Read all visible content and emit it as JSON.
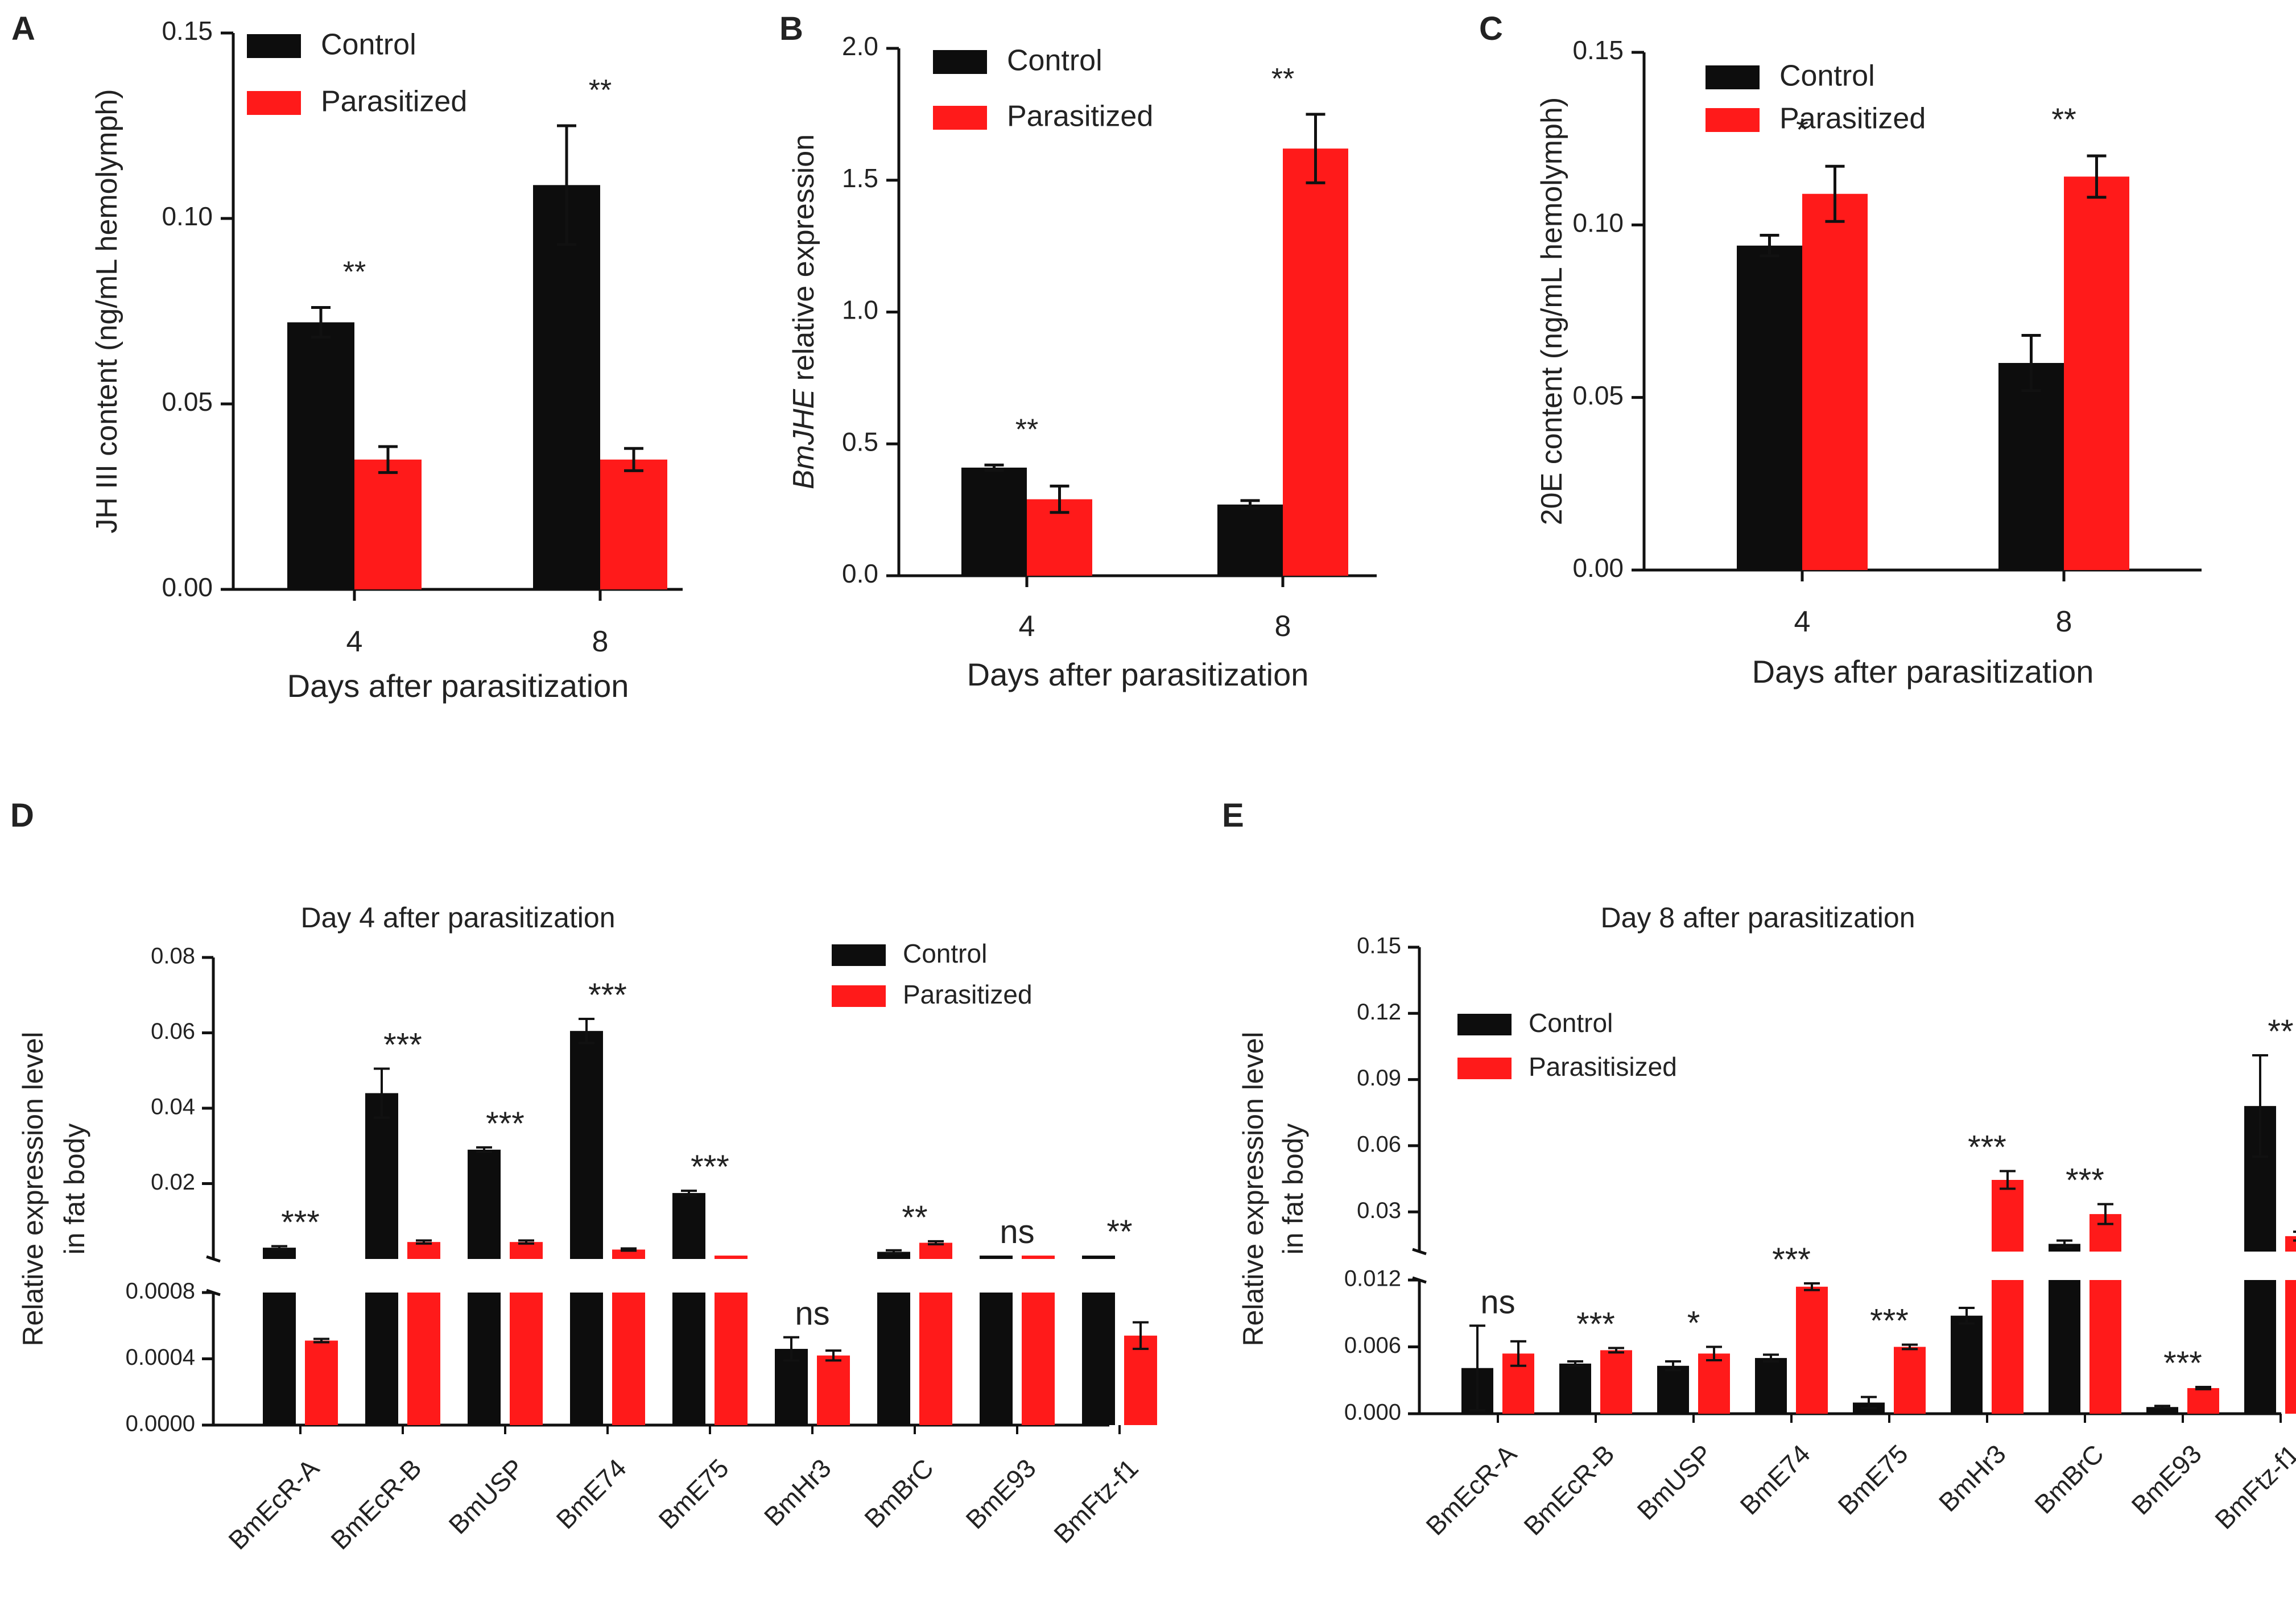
{
  "colors": {
    "control": "#0d0d0d",
    "parasitized": "#ff1a1a",
    "axis": "#111111",
    "text": "#222222"
  },
  "chart_data": [
    {
      "id": "A",
      "panel_label": "A",
      "type": "bar",
      "title": "",
      "categories": [
        "4",
        "8"
      ],
      "xlabel": "Days after parasitization",
      "ylabel": "JH III content (ng/mL hemolymph)",
      "ylim": [
        0,
        0.15
      ],
      "yticks": [
        "0.00",
        "0.05",
        "0.10",
        "0.15"
      ],
      "legend": [
        "Control",
        "Parasitized"
      ],
      "legend_position": "top-left",
      "series": [
        {
          "name": "Control",
          "color": "#0d0d0d",
          "values": [
            0.072,
            0.109
          ],
          "errors": [
            0.004,
            0.016
          ]
        },
        {
          "name": "Parasitized",
          "color": "#ff1a1a",
          "values": [
            0.035,
            0.035
          ],
          "errors": [
            0.0035,
            0.003
          ]
        }
      ],
      "significance": [
        "**",
        "**"
      ]
    },
    {
      "id": "B",
      "panel_label": "B",
      "type": "bar",
      "title": "",
      "categories": [
        "4",
        "8"
      ],
      "xlabel": "Days after parasitization",
      "ylabel_italic": "BmJHE",
      "ylabel_rest": " relative expression",
      "ylim": [
        0,
        2.0
      ],
      "yticks": [
        "0.0",
        "0.5",
        "1.0",
        "1.5",
        "2.0"
      ],
      "legend": [
        "Control",
        "Parasitized"
      ],
      "legend_position": "top-left",
      "series": [
        {
          "name": "Control",
          "color": "#0d0d0d",
          "values": [
            0.41,
            0.27
          ],
          "errors": [
            0.01,
            0.015
          ]
        },
        {
          "name": "Parasitized",
          "color": "#ff1a1a",
          "values": [
            0.29,
            1.62
          ],
          "errors": [
            0.05,
            0.13
          ]
        }
      ],
      "significance": [
        "**",
        "**"
      ]
    },
    {
      "id": "C",
      "panel_label": "C",
      "type": "bar",
      "title": "",
      "categories": [
        "4",
        "8"
      ],
      "xlabel": "Days after parasitization",
      "ylabel": "20E content (ng/mL hemolymph)",
      "ylim": [
        0,
        0.15
      ],
      "yticks": [
        "0.00",
        "0.05",
        "0.10",
        "0.15"
      ],
      "legend": [
        "Control",
        "Parasitized"
      ],
      "legend_position": "top-left",
      "series": [
        {
          "name": "Control",
          "color": "#0d0d0d",
          "values": [
            0.094,
            0.06
          ],
          "errors": [
            0.003,
            0.008
          ]
        },
        {
          "name": "Parasitized",
          "color": "#ff1a1a",
          "values": [
            0.109,
            0.114
          ],
          "errors": [
            0.008,
            0.006
          ]
        }
      ],
      "significance": [
        "*",
        "**"
      ]
    },
    {
      "id": "D",
      "panel_label": "D",
      "type": "bar",
      "title": "Day 4 after parasitization",
      "categories": [
        "BmEcR-A",
        "BmEcR-B",
        "BmUSP",
        "BmE74",
        "BmE75",
        "BmHr3",
        "BmBrC",
        "BmE93",
        "BmFtz-f1"
      ],
      "xlabel": "",
      "ylabel_lines": [
        "Relative expression level",
        "in fat body"
      ],
      "broken_axis": {
        "lower": {
          "ylim": [
            0,
            0.0008
          ],
          "yticks": [
            "0.0000",
            "0.0004",
            "0.0008"
          ]
        },
        "upper": {
          "ylim": [
            0,
            0.08
          ],
          "yticks": [
            "0.02",
            "0.04",
            "0.06",
            "0.08"
          ]
        }
      },
      "legend": [
        "Control",
        "Parasitized"
      ],
      "legend_position": "top-right",
      "series": [
        {
          "name": "Control",
          "color": "#0d0d0d",
          "values": [
            0.003,
            0.044,
            0.029,
            0.0605,
            0.0175,
            0.00046,
            0.0019,
            0.0009,
            0.0009
          ],
          "errors": [
            0.0004,
            0.0065,
            0.0006,
            0.0032,
            0.0006,
            7e-05,
            0.0004,
            0,
            0
          ]
        },
        {
          "name": "Parasitized",
          "color": "#ff1a1a",
          "values": [
            0.00051,
            0.0045,
            0.0045,
            0.0025,
            0.0009,
            0.00042,
            0.0043,
            0.0009,
            0.00054
          ],
          "errors": [
            1e-05,
            0.0004,
            0.0004,
            0.0003,
            0,
            3e-05,
            0.0004,
            0,
            8e-05
          ]
        }
      ],
      "significance": [
        "***",
        "***",
        "***",
        "***",
        "***",
        "ns",
        "**",
        "ns",
        "**"
      ]
    },
    {
      "id": "E",
      "panel_label": "E",
      "type": "bar",
      "title": "Day 8 after parasitization",
      "categories": [
        "BmEcR-A",
        "BmEcR-B",
        "BmUSP",
        "BmE74",
        "BmE75",
        "BmHr3",
        "BmBrC",
        "BmE93",
        "BmFtz-f1"
      ],
      "xlabel": "",
      "ylabel_lines": [
        "Relative expression level",
        "in fat body"
      ],
      "broken_axis": {
        "lower": {
          "ylim": [
            0,
            0.012
          ],
          "yticks": [
            "0.000",
            "0.006",
            "0.012"
          ]
        },
        "upper": {
          "ylim": [
            0.012,
            0.15
          ],
          "yticks": [
            "0.03",
            "0.06",
            "0.09",
            "0.12",
            "0.15"
          ]
        }
      },
      "legend": [
        "Control",
        "Parasitisized"
      ],
      "legend_position": "top-left",
      "series": [
        {
          "name": "Control",
          "color": "#0d0d0d",
          "values": [
            0.0041,
            0.0045,
            0.0043,
            0.005,
            0.001,
            0.0088,
            0.0155,
            0.0006,
            0.078
          ],
          "errors": [
            0.0038,
            0.0002,
            0.0004,
            0.0003,
            0.0005,
            0.0007,
            0.0015,
            0.0001,
            0.023
          ]
        },
        {
          "name": "Parasitisized",
          "color": "#ff1a1a",
          "values": [
            0.0054,
            0.0057,
            0.0054,
            0.0114,
            0.006,
            0.0445,
            0.029,
            0.0023,
            0.019
          ],
          "errors": [
            0.0011,
            0.0002,
            0.0006,
            0.0003,
            0.0002,
            0.004,
            0.0045,
            0.0001,
            0.002
          ]
        }
      ],
      "significance": [
        "ns",
        "***",
        "*",
        "***",
        "***",
        "***",
        "***",
        "***",
        "**"
      ]
    }
  ]
}
